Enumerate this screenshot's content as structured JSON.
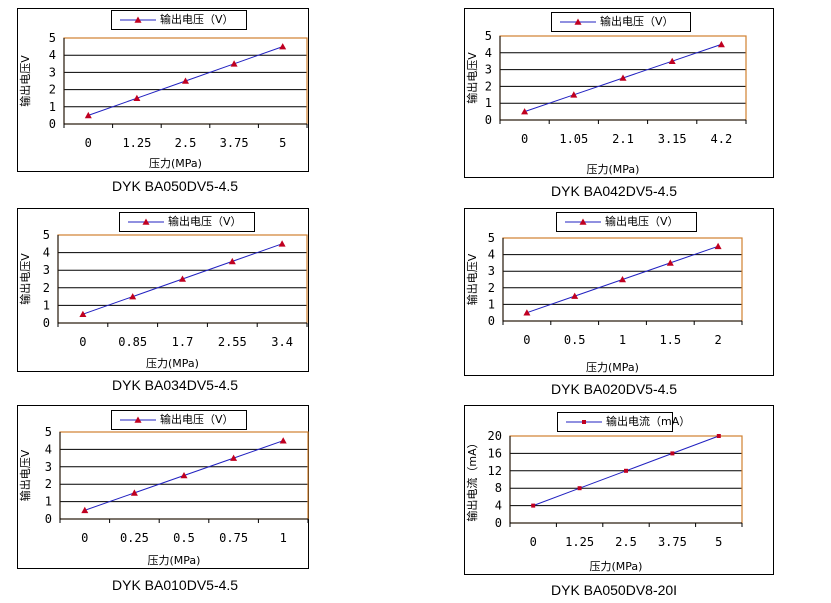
{
  "charts": [
    {
      "id": "c1",
      "type": "line",
      "legend": "输出电压（V）",
      "title": "DYK BA050DV5-4.5",
      "ylabel": "输出电压V",
      "xlabel": "压力(MPa)",
      "categories": [
        "0",
        "1.25",
        "2.5",
        "3.75",
        "5"
      ],
      "values": [
        0.5,
        1.5,
        2.5,
        3.5,
        4.5
      ],
      "ylim": [
        0,
        5
      ],
      "yticks": [
        "0",
        "1",
        "2",
        "3",
        "4",
        "5"
      ],
      "marker": "triangle"
    },
    {
      "id": "c2",
      "type": "line",
      "legend": "输出电压（V）",
      "title": "DYK BA042DV5-4.5",
      "ylabel": "输出电压V",
      "xlabel": "压力(MPa)",
      "categories": [
        "0",
        "1.05",
        "2.1",
        "3.15",
        "4.2"
      ],
      "values": [
        0.5,
        1.5,
        2.5,
        3.5,
        4.5
      ],
      "ylim": [
        0,
        5
      ],
      "yticks": [
        "0",
        "1",
        "2",
        "3",
        "4",
        "5"
      ],
      "marker": "triangle"
    },
    {
      "id": "c3",
      "type": "line",
      "legend": "输出电压（V）",
      "title": "DYK BA034DV5-4.5",
      "ylabel": "输出电压V",
      "xlabel": "压力(MPa)",
      "categories": [
        "0",
        "0.85",
        "1.7",
        "2.55",
        "3.4"
      ],
      "values": [
        0.5,
        1.5,
        2.5,
        3.5,
        4.5
      ],
      "ylim": [
        0,
        5
      ],
      "yticks": [
        "0",
        "1",
        "2",
        "3",
        "4",
        "5"
      ],
      "marker": "triangle"
    },
    {
      "id": "c4",
      "type": "line",
      "legend": "输出电压（V）",
      "title": "DYK BA020DV5-4.5",
      "ylabel": "输出电压V",
      "xlabel": "压力(MPa)",
      "categories": [
        "0",
        "0.5",
        "1",
        "1.5",
        "2"
      ],
      "values": [
        0.5,
        1.5,
        2.5,
        3.5,
        4.5
      ],
      "ylim": [
        0,
        5
      ],
      "yticks": [
        "0",
        "1",
        "2",
        "3",
        "4",
        "5"
      ],
      "marker": "triangle"
    },
    {
      "id": "c5",
      "type": "line",
      "legend": "输出电压（V）",
      "title": "DYK BA010DV5-4.5",
      "ylabel": "输出电压V",
      "xlabel": "压力(MPa)",
      "categories": [
        "0",
        "0.25",
        "0.5",
        "0.75",
        "1"
      ],
      "values": [
        0.5,
        1.5,
        2.5,
        3.5,
        4.5
      ],
      "ylim": [
        0,
        5
      ],
      "yticks": [
        "0",
        "1",
        "2",
        "3",
        "4",
        "5"
      ],
      "marker": "triangle"
    },
    {
      "id": "c6",
      "type": "line",
      "legend": "输出电流（mA）",
      "title": "DYK BA050DV8-20I",
      "ylabel": "输出电流（mA）",
      "xlabel": "压力(MPa)",
      "categories": [
        "0",
        "1.25",
        "2.5",
        "3.75",
        "5"
      ],
      "values": [
        4,
        8,
        12,
        16,
        20
      ],
      "ylim": [
        0,
        20
      ],
      "yticks": [
        "0",
        "4",
        "8",
        "12",
        "16",
        "20"
      ],
      "marker": "square"
    }
  ],
  "colors": {
    "line": "#2020c0",
    "marker": "#c00020",
    "plot_border": "#d08030",
    "grid": "#000000"
  }
}
